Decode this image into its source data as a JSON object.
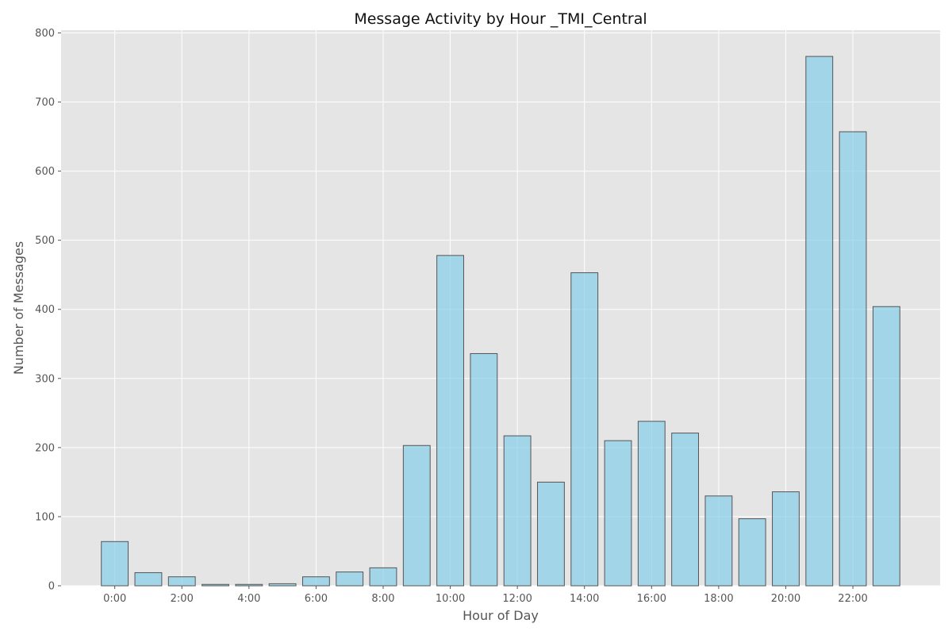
{
  "chart_data": {
    "type": "bar",
    "title": "Message Activity by Hour _TMI_Central",
    "xlabel": "Hour of Day",
    "ylabel": "Number of Messages",
    "x": [
      0,
      1,
      2,
      3,
      4,
      5,
      6,
      7,
      8,
      9,
      10,
      11,
      12,
      13,
      14,
      15,
      16,
      17,
      18,
      19,
      20,
      21,
      22,
      23
    ],
    "values": [
      64,
      19,
      13,
      2,
      2,
      3,
      13,
      20,
      26,
      203,
      478,
      336,
      217,
      150,
      453,
      210,
      238,
      221,
      130,
      97,
      136,
      766,
      657,
      404
    ],
    "xticks": [
      0,
      2,
      4,
      6,
      8,
      10,
      12,
      14,
      16,
      18,
      20,
      22
    ],
    "xtick_labels": [
      "0:00",
      "2:00",
      "4:00",
      "6:00",
      "8:00",
      "10:00",
      "12:00",
      "14:00",
      "16:00",
      "18:00",
      "20:00",
      "22:00"
    ],
    "yticks": [
      0,
      100,
      200,
      300,
      400,
      500,
      600,
      700,
      800
    ],
    "ytick_labels": [
      "0",
      "100",
      "200",
      "300",
      "400",
      "500",
      "600",
      "700",
      "800"
    ],
    "xlim": [
      -1.6,
      24.6
    ],
    "ylim": [
      0,
      804
    ],
    "grid": true,
    "colors": {
      "plot_background": "#e5e5e5",
      "bar_fill": "#87ceeb",
      "bar_edge": "#555555",
      "grid": "#ffffff"
    }
  }
}
